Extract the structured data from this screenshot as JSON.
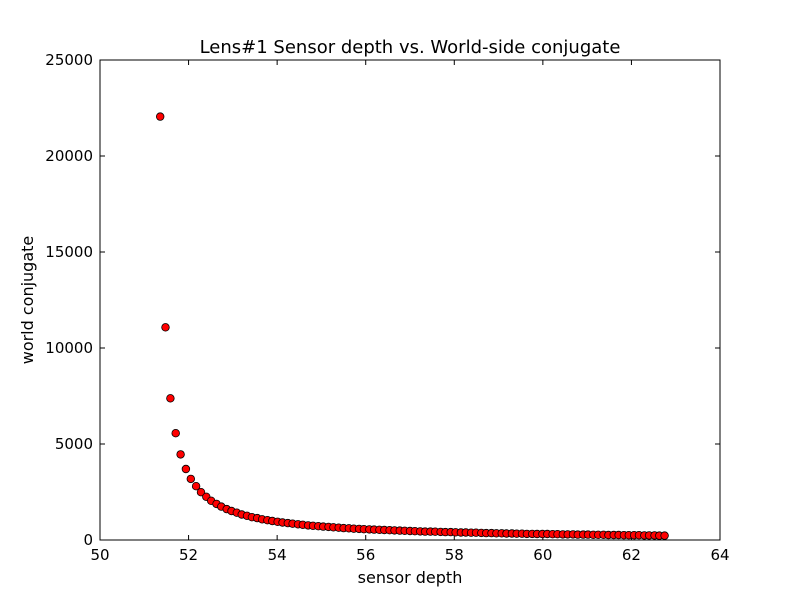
{
  "chart_data": {
    "type": "scatter",
    "title": "Lens#1 Sensor depth vs. World-side conjugate",
    "xlabel": "sensor depth",
    "ylabel": "world conjugate",
    "xlim": [
      50,
      64
    ],
    "ylim": [
      0,
      25000
    ],
    "xticks": [
      "50",
      "52",
      "54",
      "56",
      "58",
      "60",
      "62",
      "64"
    ],
    "yticks": [
      "0",
      "5000",
      "10000",
      "15000",
      "20000",
      "25000"
    ],
    "grid": false,
    "legend": "none",
    "marker_color": "#ff0000",
    "marker_edge_color": "#000000",
    "series": [
      {
        "x": [
          51.36,
          51.48,
          51.59,
          51.71,
          51.82,
          51.94,
          52.05,
          52.17,
          52.28,
          52.4,
          52.51,
          52.63,
          52.74,
          52.86,
          52.97,
          53.09,
          53.2,
          53.32,
          53.43,
          53.55,
          53.66,
          53.78,
          53.89,
          54.01,
          54.12,
          54.24,
          54.35,
          54.47,
          54.58,
          54.7,
          54.81,
          54.93,
          55.04,
          55.16,
          55.27,
          55.39,
          55.5,
          55.62,
          55.73,
          55.85,
          55.96,
          56.08,
          56.19,
          56.31,
          56.42,
          56.54,
          56.65,
          56.77,
          56.88,
          57.0,
          57.11,
          57.23,
          57.34,
          57.46,
          57.57,
          57.69,
          57.8,
          57.92,
          58.03,
          58.15,
          58.26,
          58.38,
          58.49,
          58.61,
          58.72,
          58.84,
          58.95,
          59.07,
          59.18,
          59.3,
          59.41,
          59.53,
          59.64,
          59.76,
          59.87,
          59.99,
          60.1,
          60.22,
          60.33,
          60.45,
          60.56,
          60.68,
          60.79,
          60.91,
          61.02,
          61.14,
          61.25,
          61.37,
          61.48,
          61.6,
          61.71,
          61.83,
          61.94,
          62.06,
          62.17,
          62.29,
          62.4,
          62.52,
          62.63,
          62.75
        ],
        "y": [
          22050,
          11080,
          7380,
          5560,
          4460,
          3700,
          3180,
          2800,
          2490,
          2250,
          2040,
          1880,
          1740,
          1610,
          1510,
          1420,
          1330,
          1260,
          1190,
          1140,
          1080,
          1030,
          990,
          950,
          910,
          880,
          850,
          820,
          790,
          760,
          740,
          720,
          700,
          680,
          660,
          640,
          620,
          610,
          590,
          580,
          560,
          550,
          540,
          530,
          520,
          510,
          500,
          490,
          480,
          470,
          460,
          450,
          440,
          440,
          430,
          420,
          410,
          410,
          400,
          390,
          390,
          380,
          380,
          370,
          360,
          360,
          350,
          350,
          340,
          340,
          330,
          330,
          320,
          320,
          310,
          310,
          310,
          300,
          300,
          290,
          290,
          290,
          280,
          280,
          280,
          270,
          270,
          270,
          260,
          260,
          260,
          250,
          250,
          250,
          250,
          240,
          240,
          240,
          230,
          230
        ]
      }
    ]
  }
}
